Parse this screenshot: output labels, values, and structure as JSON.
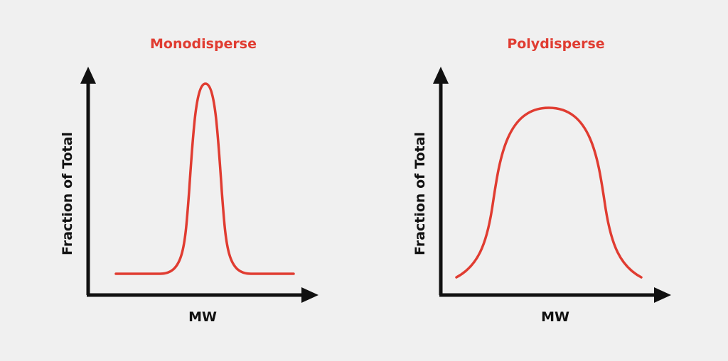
{
  "panels": [
    {
      "title": "Monodisperse",
      "x_label": "MW",
      "y_label": "Fraction of Total",
      "curve_shape": "narrow-peak"
    },
    {
      "title": "Polydisperse",
      "x_label": "MW",
      "y_label": "Fraction of Total",
      "curve_shape": "broad-peak"
    }
  ],
  "colors": {
    "curve": "#e03c31",
    "axis": "#111111",
    "title": "#e03c31",
    "background": "#f0f0f0"
  }
}
